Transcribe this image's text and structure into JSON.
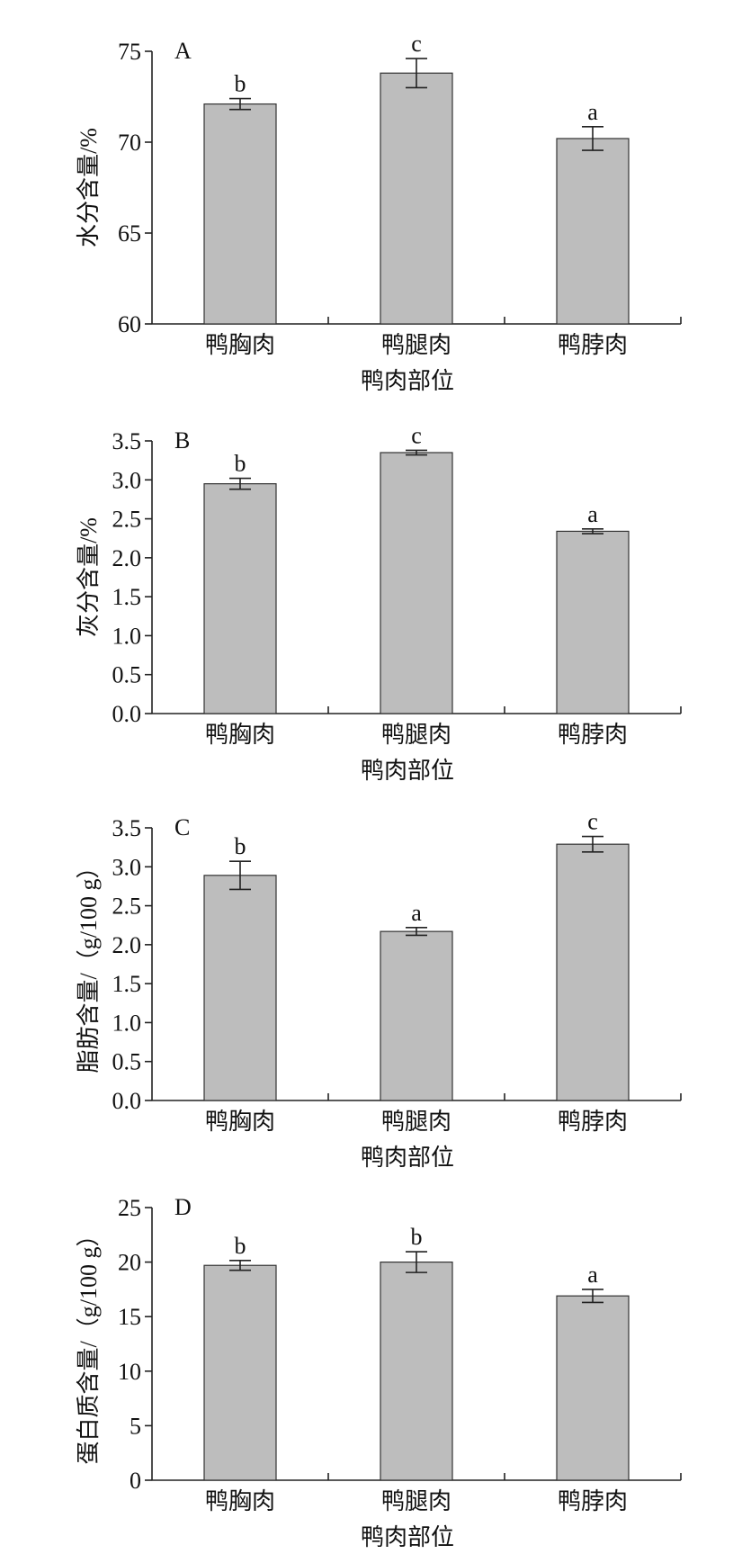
{
  "chart_data": [
    {
      "type": "bar",
      "panel": "A",
      "ylabel": "水分含量/%",
      "xlabel": "鸭肉部位",
      "categories": [
        "鸭胸肉",
        "鸭腿肉",
        "鸭脖肉"
      ],
      "values": [
        72.1,
        73.8,
        70.2
      ],
      "errors": [
        0.3,
        0.8,
        0.65
      ],
      "annotations": [
        "b",
        "c",
        "a"
      ],
      "color": "#bdbdbd",
      "ylim": [
        60,
        75
      ],
      "yticks": [
        60,
        65,
        70,
        75
      ]
    },
    {
      "type": "bar",
      "panel": "B",
      "ylabel": "灰分含量/%",
      "xlabel": "鸭肉部位",
      "categories": [
        "鸭胸肉",
        "鸭腿肉",
        "鸭脖肉"
      ],
      "values": [
        2.95,
        3.35,
        2.34
      ],
      "errors": [
        0.07,
        0.03,
        0.03
      ],
      "annotations": [
        "b",
        "c",
        "a"
      ],
      "color": "#bdbdbd",
      "ylim": [
        0,
        3.5
      ],
      "yticks": [
        {
          "value": 0,
          "label": "0.0"
        },
        0.5,
        {
          "value": 1,
          "label": "1.0"
        },
        1.5,
        {
          "value": 2,
          "label": "2.0"
        },
        2.5,
        {
          "value": 3,
          "label": "3.0"
        },
        3.5
      ]
    },
    {
      "type": "bar",
      "panel": "C",
      "ylabel": "脂肪含量/（g/100 g）",
      "xlabel": "鸭肉部位",
      "categories": [
        "鸭胸肉",
        "鸭腿肉",
        "鸭脖肉"
      ],
      "values": [
        2.89,
        2.17,
        3.29
      ],
      "errors": [
        0.18,
        0.05,
        0.1
      ],
      "annotations": [
        "b",
        "a",
        "c"
      ],
      "color": "#bdbdbd",
      "ylim": [
        0,
        3.5
      ],
      "yticks": [
        {
          "value": 0,
          "label": "0.0"
        },
        0.5,
        {
          "value": 1,
          "label": "1.0"
        },
        1.5,
        {
          "value": 2,
          "label": "2.0"
        },
        2.5,
        {
          "value": 3,
          "label": "3.0"
        },
        3.5
      ]
    },
    {
      "type": "bar",
      "panel": "D",
      "ylabel": "蛋白质含量/（g/100 g）",
      "xlabel": "鸭肉部位",
      "categories": [
        "鸭胸肉",
        "鸭腿肉",
        "鸭脖肉"
      ],
      "values": [
        19.7,
        20.0,
        16.9
      ],
      "errors": [
        0.45,
        0.95,
        0.6
      ],
      "annotations": [
        "b",
        "b",
        "a"
      ],
      "color": "#bdbdbd",
      "ylim": [
        0,
        25
      ],
      "yticks": [
        0,
        5,
        10,
        15,
        20,
        25
      ]
    }
  ]
}
